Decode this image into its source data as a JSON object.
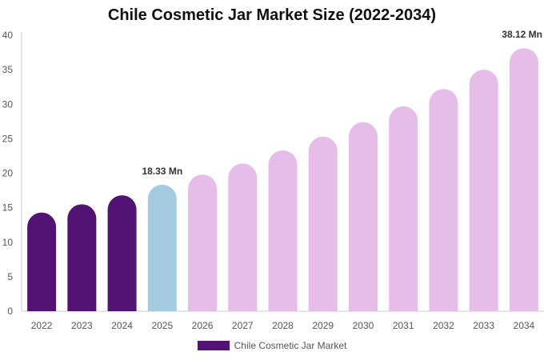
{
  "chart_data": {
    "type": "bar",
    "title": "Chile Cosmetic Jar Market Size (2022-2034)",
    "xlabel": "",
    "ylabel": "",
    "categories": [
      "2022",
      "2023",
      "2024",
      "2025",
      "2026",
      "2027",
      "2028",
      "2029",
      "2030",
      "2031",
      "2032",
      "2033",
      "2034"
    ],
    "series": [
      {
        "name": "Chile Cosmetic Jar Market",
        "values": [
          14.3,
          15.5,
          16.8,
          18.33,
          19.8,
          21.4,
          23.3,
          25.3,
          27.4,
          29.7,
          32.2,
          35.0,
          38.12
        ]
      }
    ],
    "ylim": [
      0,
      40
    ],
    "yticks": [
      0,
      5,
      10,
      15,
      20,
      25,
      30,
      35,
      40
    ],
    "grid": false,
    "legend_position": "bottom",
    "data_labels": [
      {
        "index": 3,
        "text": "18.33 Mn"
      },
      {
        "index": 12,
        "text": "38.12 Mn"
      }
    ],
    "colors": {
      "historical": "#521374",
      "base_year": "#a4cbe0",
      "forecast": "#e6bde9",
      "axis": "#cccccc"
    },
    "bar_color_groups": [
      "historical",
      "historical",
      "historical",
      "base_year",
      "forecast",
      "forecast",
      "forecast",
      "forecast",
      "forecast",
      "forecast",
      "forecast",
      "forecast",
      "forecast"
    ]
  }
}
